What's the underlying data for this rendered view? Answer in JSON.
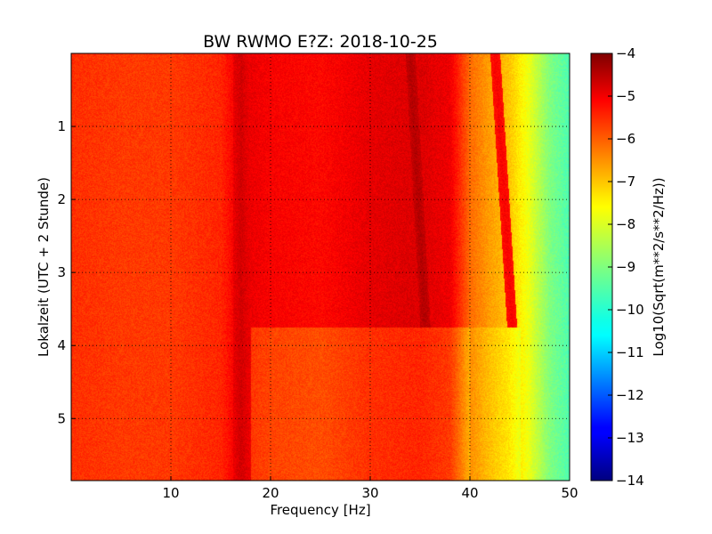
{
  "chart_data": {
    "type": "heatmap",
    "title": "BW RWMO E?Z: 2018-10-25",
    "xlabel": "Frequency [Hz]",
    "ylabel": "Lokalzeit (UTC + 2 Stunde)",
    "xlim": [
      0,
      50
    ],
    "ylim": [
      5.85,
      0.0
    ],
    "x_ticks": [
      10,
      20,
      30,
      40,
      50
    ],
    "y_ticks": [
      1,
      2,
      3,
      4,
      5
    ],
    "grid": true,
    "colormap": "jet",
    "colorbar": {
      "label": "Log10(Sqrt(m**2/s**2/Hz))",
      "range": [
        -14,
        -4
      ],
      "ticks": [
        -4,
        -5,
        -6,
        -7,
        -8,
        -9,
        -10,
        -11,
        -12,
        -13,
        -14
      ]
    },
    "z_profile_by_frequency": {
      "x": [
        0,
        5,
        10,
        15,
        17,
        20,
        25,
        30,
        35,
        38,
        40,
        42,
        44,
        46,
        48,
        50
      ],
      "value": [
        -5.7,
        -5.8,
        -5.8,
        -5.6,
        -5.0,
        -5.2,
        -5.3,
        -5.0,
        -4.9,
        -5.1,
        -6.3,
        -6.8,
        -7.2,
        -8.0,
        -9.0,
        -9.5
      ]
    },
    "features": [
      {
        "type": "vertical_line",
        "x": 17,
        "y_from": 0,
        "y_to": 5.85,
        "value": -4.8
      },
      {
        "type": "sloped_line",
        "x_start": 34,
        "x_end": 35.5,
        "y_from": 0,
        "y_to": 3.75,
        "value": -4.5
      },
      {
        "type": "sloped_line",
        "x_start": 42.5,
        "x_end": 44.2,
        "y_from": 0,
        "y_to": 3.75,
        "value": -5.2
      },
      {
        "type": "level_change",
        "y": 3.75,
        "x_from": 18,
        "x_to": 45,
        "value_above": -5.2,
        "value_below": -5.9
      }
    ]
  }
}
